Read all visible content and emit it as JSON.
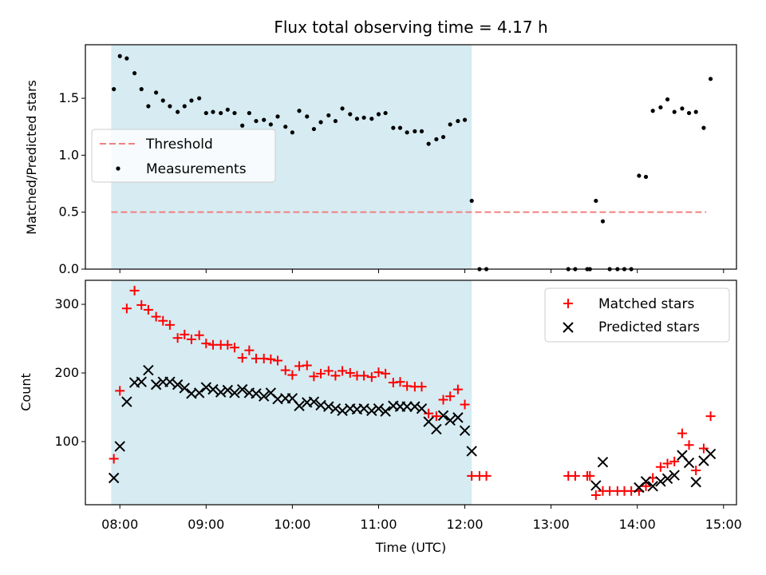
{
  "chart_data": [
    {
      "type": "scatter",
      "title": "Flux total observing time = 4.17 h",
      "xlabel": "",
      "ylabel": "Matched/Predicted stars",
      "xlim": [
        7.6,
        15.15
      ],
      "ylim": [
        0,
        1.97
      ],
      "yticks": [
        0.0,
        0.5,
        1.0,
        1.5
      ],
      "ytick_labels": [
        "0.0",
        "0.5",
        "1.0",
        "1.5"
      ],
      "shaded_interval": [
        7.9,
        12.08
      ],
      "threshold": {
        "name": "Threshold",
        "value": 0.5,
        "x_start": 7.9,
        "x_end": 14.8,
        "color": "#f08080"
      },
      "series": [
        {
          "name": "Measurements",
          "color": "#000000",
          "points": [
            [
              7.93,
              1.58
            ],
            [
              8.0,
              1.87
            ],
            [
              8.08,
              1.85
            ],
            [
              8.17,
              1.72
            ],
            [
              8.25,
              1.58
            ],
            [
              8.33,
              1.43
            ],
            [
              8.42,
              1.55
            ],
            [
              8.5,
              1.48
            ],
            [
              8.58,
              1.43
            ],
            [
              8.67,
              1.38
            ],
            [
              8.75,
              1.43
            ],
            [
              8.83,
              1.48
            ],
            [
              8.92,
              1.5
            ],
            [
              9.0,
              1.37
            ],
            [
              9.08,
              1.38
            ],
            [
              9.17,
              1.37
            ],
            [
              9.25,
              1.4
            ],
            [
              9.33,
              1.37
            ],
            [
              9.42,
              1.26
            ],
            [
              9.5,
              1.37
            ],
            [
              9.58,
              1.3
            ],
            [
              9.67,
              1.31
            ],
            [
              9.75,
              1.27
            ],
            [
              9.83,
              1.34
            ],
            [
              9.92,
              1.25
            ],
            [
              10.0,
              1.2
            ],
            [
              10.08,
              1.39
            ],
            [
              10.17,
              1.34
            ],
            [
              10.25,
              1.23
            ],
            [
              10.33,
              1.29
            ],
            [
              10.42,
              1.35
            ],
            [
              10.5,
              1.3
            ],
            [
              10.58,
              1.41
            ],
            [
              10.67,
              1.36
            ],
            [
              10.75,
              1.32
            ],
            [
              10.83,
              1.33
            ],
            [
              10.92,
              1.32
            ],
            [
              11.0,
              1.36
            ],
            [
              11.08,
              1.37
            ],
            [
              11.17,
              1.24
            ],
            [
              11.25,
              1.24
            ],
            [
              11.33,
              1.2
            ],
            [
              11.42,
              1.21
            ],
            [
              11.5,
              1.21
            ],
            [
              11.58,
              1.1
            ],
            [
              11.67,
              1.14
            ],
            [
              11.75,
              1.16
            ],
            [
              11.83,
              1.27
            ],
            [
              11.92,
              1.3
            ],
            [
              12.0,
              1.31
            ],
            [
              12.08,
              0.6
            ],
            [
              12.17,
              0.0
            ],
            [
              12.25,
              0.0
            ],
            [
              13.2,
              0.0
            ],
            [
              13.28,
              0.0
            ],
            [
              13.42,
              0.0
            ],
            [
              13.45,
              0.0
            ],
            [
              13.52,
              0.6
            ],
            [
              13.6,
              0.42
            ],
            [
              13.68,
              0.0
            ],
            [
              13.77,
              0.0
            ],
            [
              13.85,
              0.0
            ],
            [
              13.93,
              0.0
            ],
            [
              14.02,
              0.82
            ],
            [
              14.1,
              0.81
            ],
            [
              14.18,
              1.39
            ],
            [
              14.27,
              1.42
            ],
            [
              14.35,
              1.49
            ],
            [
              14.43,
              1.38
            ],
            [
              14.52,
              1.41
            ],
            [
              14.6,
              1.37
            ],
            [
              14.68,
              1.38
            ],
            [
              14.77,
              1.24
            ],
            [
              14.85,
              1.67
            ]
          ]
        }
      ],
      "legend": {
        "placement": "center-left",
        "entries": [
          "Threshold",
          "Measurements"
        ]
      }
    },
    {
      "type": "scatter",
      "title": "",
      "xlabel": "Time (UTC)",
      "ylabel": "Count",
      "xlim": [
        7.6,
        15.15
      ],
      "ylim": [
        8,
        335
      ],
      "yticks": [
        100,
        200,
        300
      ],
      "ytick_labels": [
        "100",
        "200",
        "300"
      ],
      "xticks": [
        8,
        9,
        10,
        11,
        12,
        13,
        14,
        15
      ],
      "xtick_labels": [
        "08:00",
        "09:00",
        "10:00",
        "11:00",
        "12:00",
        "13:00",
        "14:00",
        "15:00"
      ],
      "shaded_interval": [
        7.9,
        12.08
      ],
      "series": [
        {
          "name": "Matched stars",
          "marker": "plus",
          "color": "#ff0000",
          "points": [
            [
              7.93,
              75
            ],
            [
              8.0,
              174
            ],
            [
              8.08,
              294
            ],
            [
              8.17,
              320
            ],
            [
              8.25,
              299
            ],
            [
              8.33,
              292
            ],
            [
              8.42,
              282
            ],
            [
              8.5,
              276
            ],
            [
              8.58,
              270
            ],
            [
              8.67,
              251
            ],
            [
              8.75,
              256
            ],
            [
              8.83,
              249
            ],
            [
              8.92,
              255
            ],
            [
              9.0,
              243
            ],
            [
              9.08,
              241
            ],
            [
              9.17,
              241
            ],
            [
              9.25,
              241
            ],
            [
              9.33,
              237
            ],
            [
              9.42,
              222
            ],
            [
              9.5,
              233
            ],
            [
              9.58,
              221
            ],
            [
              9.67,
              221
            ],
            [
              9.75,
              220
            ],
            [
              9.83,
              218
            ],
            [
              9.92,
              204
            ],
            [
              10.0,
              197
            ],
            [
              10.08,
              210
            ],
            [
              10.17,
              211
            ],
            [
              10.25,
              195
            ],
            [
              10.33,
              199
            ],
            [
              10.42,
              203
            ],
            [
              10.5,
              196
            ],
            [
              10.58,
              203
            ],
            [
              10.67,
              200
            ],
            [
              10.75,
              196
            ],
            [
              10.83,
              196
            ],
            [
              10.92,
              194
            ],
            [
              11.0,
              201
            ],
            [
              11.08,
              199
            ],
            [
              11.17,
              186
            ],
            [
              11.25,
              187
            ],
            [
              11.33,
              181
            ],
            [
              11.42,
              180
            ],
            [
              11.5,
              180
            ],
            [
              11.58,
              141
            ],
            [
              11.67,
              137
            ],
            [
              11.75,
              161
            ],
            [
              11.83,
              166
            ],
            [
              11.92,
              176
            ],
            [
              12.0,
              154
            ],
            [
              12.08,
              50
            ],
            [
              12.17,
              50
            ],
            [
              12.25,
              50
            ],
            [
              13.2,
              50
            ],
            [
              13.28,
              50
            ],
            [
              13.42,
              50
            ],
            [
              13.45,
              50
            ],
            [
              13.52,
              22
            ],
            [
              13.6,
              28
            ],
            [
              13.68,
              28
            ],
            [
              13.77,
              28
            ],
            [
              13.85,
              28
            ],
            [
              13.93,
              28
            ],
            [
              14.02,
              28
            ],
            [
              14.1,
              35
            ],
            [
              14.18,
              47
            ],
            [
              14.27,
              63
            ],
            [
              14.35,
              68
            ],
            [
              14.43,
              71
            ],
            [
              14.52,
              112
            ],
            [
              14.6,
              95
            ],
            [
              14.68,
              58
            ],
            [
              14.77,
              90
            ],
            [
              14.85,
              137
            ]
          ]
        },
        {
          "name": "Predicted stars",
          "marker": "x",
          "color": "#000000",
          "points": [
            [
              7.93,
              47
            ],
            [
              8.0,
              93
            ],
            [
              8.08,
              158
            ],
            [
              8.17,
              186
            ],
            [
              8.25,
              187
            ],
            [
              8.33,
              204
            ],
            [
              8.42,
              183
            ],
            [
              8.5,
              187
            ],
            [
              8.58,
              187
            ],
            [
              8.67,
              183
            ],
            [
              8.75,
              178
            ],
            [
              8.83,
              170
            ],
            [
              8.92,
              171
            ],
            [
              9.0,
              179
            ],
            [
              9.08,
              176
            ],
            [
              9.17,
              172
            ],
            [
              9.25,
              175
            ],
            [
              9.33,
              171
            ],
            [
              9.42,
              176
            ],
            [
              9.5,
              171
            ],
            [
              9.58,
              170
            ],
            [
              9.67,
              166
            ],
            [
              9.75,
              171
            ],
            [
              9.83,
              162
            ],
            [
              9.92,
              163
            ],
            [
              10.0,
              163
            ],
            [
              10.08,
              152
            ],
            [
              10.17,
              157
            ],
            [
              10.25,
              158
            ],
            [
              10.33,
              153
            ],
            [
              10.42,
              151
            ],
            [
              10.5,
              148
            ],
            [
              10.58,
              145
            ],
            [
              10.67,
              148
            ],
            [
              10.75,
              147
            ],
            [
              10.83,
              148
            ],
            [
              10.92,
              145
            ],
            [
              11.0,
              148
            ],
            [
              11.08,
              144
            ],
            [
              11.17,
              152
            ],
            [
              11.25,
              151
            ],
            [
              11.33,
              151
            ],
            [
              11.42,
              151
            ],
            [
              11.5,
              148
            ],
            [
              11.58,
              129
            ],
            [
              11.67,
              118
            ],
            [
              11.75,
              138
            ],
            [
              11.83,
              131
            ],
            [
              11.92,
              135
            ],
            [
              12.0,
              116
            ],
            [
              12.08,
              86
            ],
            [
              13.52,
              36
            ],
            [
              13.6,
              70
            ],
            [
              14.02,
              33
            ],
            [
              14.1,
              42
            ],
            [
              14.18,
              35
            ],
            [
              14.27,
              42
            ],
            [
              14.35,
              46
            ],
            [
              14.43,
              51
            ],
            [
              14.52,
              80
            ],
            [
              14.6,
              69
            ],
            [
              14.68,
              41
            ],
            [
              14.77,
              72
            ],
            [
              14.85,
              82
            ]
          ]
        }
      ],
      "legend": {
        "placement": "top-right",
        "entries": [
          "Matched stars",
          "Predicted stars"
        ]
      }
    }
  ]
}
